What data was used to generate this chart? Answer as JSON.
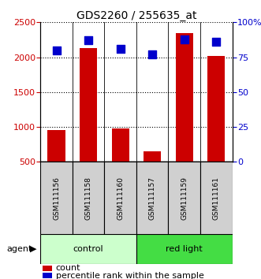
{
  "title": "GDS2260 / 255635_at",
  "samples": [
    "GSM111156",
    "GSM111158",
    "GSM111160",
    "GSM111157",
    "GSM111159",
    "GSM111161"
  ],
  "counts": [
    950,
    2130,
    980,
    650,
    2350,
    2020
  ],
  "percentile_ranks": [
    80,
    87,
    81,
    77,
    88,
    86
  ],
  "left_ylim": [
    500,
    2500
  ],
  "right_ylim": [
    0,
    100
  ],
  "left_yticks": [
    500,
    1000,
    1500,
    2000,
    2500
  ],
  "right_yticks": [
    0,
    25,
    50,
    75,
    100
  ],
  "right_yticklabels": [
    "0",
    "25",
    "50",
    "75",
    "100%"
  ],
  "bar_color": "#cc0000",
  "dot_color": "#0000cc",
  "control_color_light": "#ccffcc",
  "control_color_dark": "#44dd44",
  "bar_width": 0.55,
  "dot_size": 55,
  "legend_count_color": "#cc0000",
  "legend_pct_color": "#0000cc",
  "group_info": [
    {
      "label": "control",
      "start": 0,
      "end": 2,
      "color": "#ccffcc"
    },
    {
      "label": "red light",
      "start": 3,
      "end": 5,
      "color": "#44dd44"
    }
  ]
}
